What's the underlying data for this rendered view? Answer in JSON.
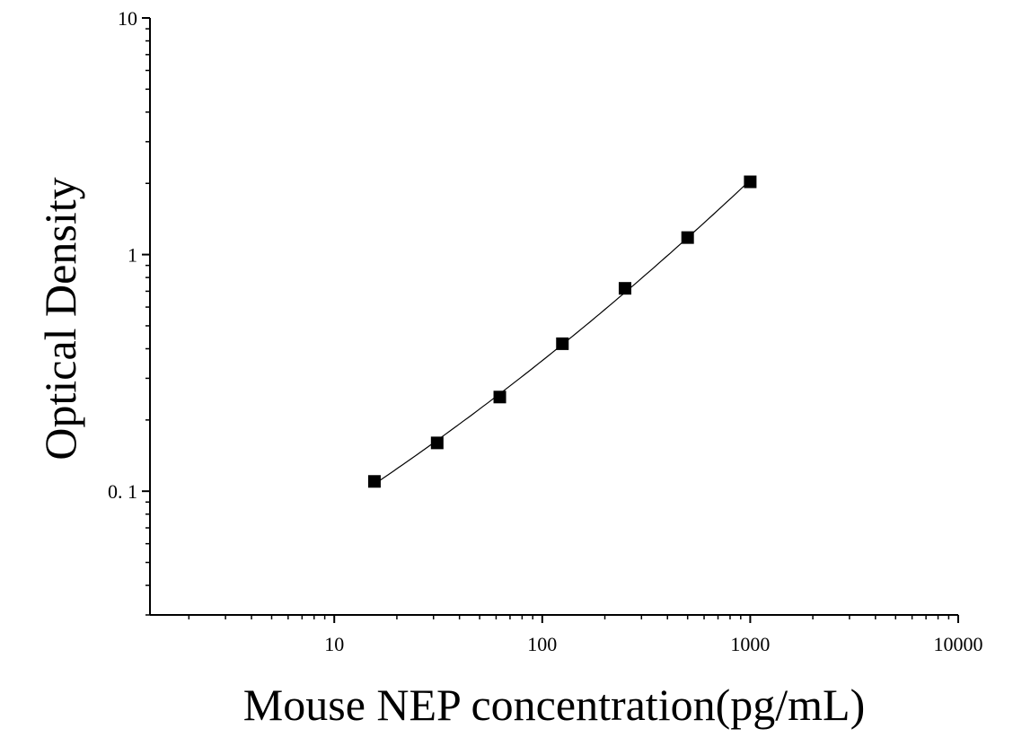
{
  "chart_data": {
    "type": "scatter",
    "xlabel": "Mouse NEP concentration(pg/mL)",
    "ylabel": "Optical Density",
    "x_scale": "log",
    "y_scale": "log",
    "xlim": [
      1.3,
      10000
    ],
    "ylim": [
      0.03,
      10
    ],
    "x_ticks": [
      {
        "value": 10,
        "label": "10"
      },
      {
        "value": 100,
        "label": "100"
      },
      {
        "value": 1000,
        "label": "1000"
      },
      {
        "value": 10000,
        "label": "10000"
      }
    ],
    "y_ticks": [
      {
        "value": 0.1,
        "label": "0. 1"
      },
      {
        "value": 1,
        "label": "1"
      },
      {
        "value": 10,
        "label": "10"
      }
    ],
    "grid": false,
    "marker": "square",
    "fit_line": true,
    "color": "#000000",
    "series": [
      {
        "x": [
          15.6,
          31.25,
          62.5,
          125,
          250,
          500,
          1000
        ],
        "y": [
          0.11,
          0.16,
          0.25,
          0.42,
          0.72,
          1.18,
          2.03
        ]
      }
    ]
  }
}
